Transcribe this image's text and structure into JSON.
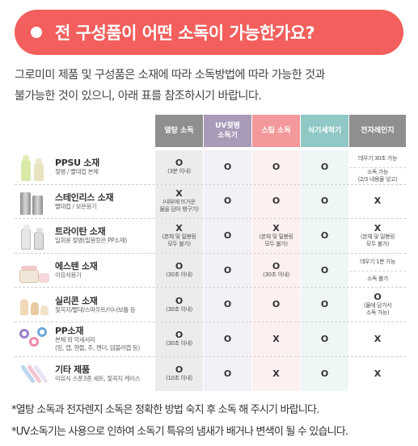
{
  "banner": {
    "title": "전 구성품이 어떤 소독이 가능한가요?"
  },
  "intro": {
    "line1": "그로미미 제품 및 구성품은 소재에 따라 소독방법에 따라 가능한 것과",
    "line2": "불가능한 것이 있으니, 아래 표를 참조하시기 바랍니다."
  },
  "headers": [
    "열탕 소독",
    "UV젖병\n소독기",
    "스팀 소독",
    "식기세척기",
    "전자레인지"
  ],
  "rows": [
    {
      "name": "PPSU 소재",
      "desc": "젖병 / 빨대컵 본체",
      "icon": "ppsu-bottle-icon",
      "c1": {
        "mark": "O",
        "note": "(3분 이내)"
      },
      "c2": {
        "mark": "O",
        "note": ""
      },
      "c3": {
        "mark": "O",
        "note": ""
      },
      "c4": {
        "mark": "O",
        "note": ""
      },
      "c5": {
        "top": "데우기 30초 가능",
        "bottom": "소독 가능\n(2/3 내용물 넣고)"
      }
    },
    {
      "name": "스테인리스 소재",
      "desc": "빨대컵 / 보온용기",
      "icon": "stainless-container-icon",
      "c1": {
        "mark": "X",
        "note": "(내부에 뜨거운\n물을 담아 헹구기)"
      },
      "c2": {
        "mark": "O",
        "note": ""
      },
      "c3": {
        "mark": "O",
        "note": ""
      },
      "c4": {
        "mark": "O",
        "note": ""
      },
      "c5": {
        "mark": "X",
        "note": ""
      }
    },
    {
      "name": "트라이탄 소재",
      "desc": "일회용 젖병(밀봉링은 PP소재)",
      "icon": "tritan-bottle-icon",
      "c1": {
        "mark": "X",
        "note": "(본체 및 밀봉링\n모두 불가)"
      },
      "c2": {
        "mark": "O",
        "note": ""
      },
      "c3": {
        "mark": "X",
        "note": "(본체 및 밀봉링\n모두 불가)"
      },
      "c4": {
        "mark": "O",
        "note": ""
      },
      "c5": {
        "mark": "X",
        "note": "(본체 및 밀봉링\n모두 불가)"
      }
    },
    {
      "name": "에스텐 소재",
      "desc": "이유식용기",
      "icon": "esten-jar-icon",
      "c1": {
        "mark": "O",
        "note": "(30초 이내)"
      },
      "c2": {
        "mark": "O",
        "note": ""
      },
      "c3": {
        "mark": "O",
        "note": "(30초 이내)"
      },
      "c4": {
        "mark": "O",
        "note": ""
      },
      "c5": {
        "top": "데우기 1분 가능",
        "bottom": "소독 불가"
      }
    },
    {
      "name": "실리콘 소재",
      "desc": "젖꼭지/빨대/스파우트/이너보틀 등",
      "icon": "silicone-nipple-icon",
      "c1": {
        "mark": "O",
        "note": "(30초 이내)"
      },
      "c2": {
        "mark": "O",
        "note": ""
      },
      "c3": {
        "mark": "O",
        "note": ""
      },
      "c4": {
        "mark": "O",
        "note": ""
      },
      "c5": {
        "mark": "O",
        "note": "(물에 담가서\n소독 가능)"
      }
    },
    {
      "name": "PP소재",
      "desc1": "본체 외 악세서리",
      "desc2": "(링, 캡, 핸들, 추, 젠더, 덤블러캡 등)",
      "icon": "pp-accessories-icon",
      "c1": {
        "mark": "O",
        "note": "(30초 이내)"
      },
      "c2": {
        "mark": "O",
        "note": ""
      },
      "c3": {
        "mark": "X",
        "note": ""
      },
      "c4": {
        "mark": "O",
        "note": ""
      },
      "c5": {
        "mark": "X",
        "note": ""
      }
    },
    {
      "name": "기타 제품",
      "desc": "이유식 스푼3종 세트, 젖꼭지 케이스",
      "icon": "spoon-set-icon",
      "c1": {
        "mark": "O",
        "note": "(10초 이내)"
      },
      "c2": {
        "mark": "O",
        "note": ""
      },
      "c3": {
        "mark": "X",
        "note": ""
      },
      "c4": {
        "mark": "O",
        "note": ""
      },
      "c5": {
        "mark": "X",
        "note": ""
      }
    }
  ],
  "footer": {
    "line1": "*열탕 소독과 전자렌지 소독은 정확한 방법 숙지 후 소독 해 주시기 바랍니다.",
    "line2": "*UV소독기는 사용으로 인하여 소독기 특유의 냄새가 배거나 변색이 될 수 있습니다."
  },
  "colors": {
    "banner": "#f25f5c",
    "header_boil": "#8f8f8f",
    "header_uv": "#a99ab8",
    "header_steam": "#f4999b",
    "header_dish": "#8fc8c4",
    "header_micro": "#8f8f8f"
  }
}
